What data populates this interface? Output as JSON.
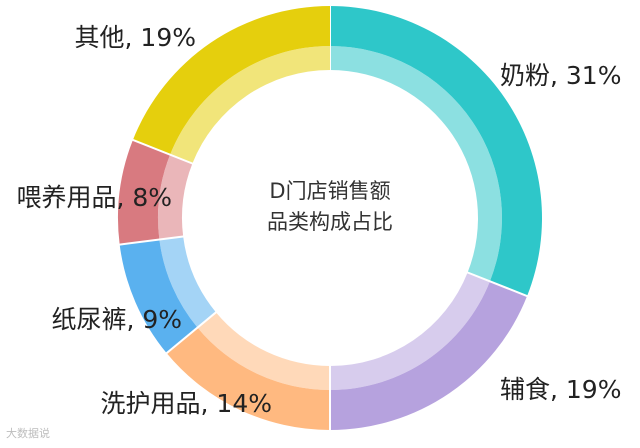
{
  "chart_data": {
    "type": "pie",
    "variant": "donut",
    "title": [
      "D门店销售额",
      "品类构成占比"
    ],
    "slices": [
      {
        "name": "奶粉",
        "value": 31,
        "label": "奶粉, 31%",
        "color": "#2ec7c9"
      },
      {
        "name": "辅食",
        "value": 19,
        "label": "辅食, 19%",
        "color": "#b6a2de"
      },
      {
        "name": "洗护用品",
        "value": 14,
        "label": "洗护用品, 14%",
        "color": "#ffb980"
      },
      {
        "name": "纸尿裤",
        "value": 9,
        "label": "纸尿裤, 9%",
        "color": "#5ab1ef"
      },
      {
        "name": "喂养用品",
        "value": 8,
        "label": "喂养用品, 8%",
        "color": "#d87a80"
      },
      {
        "name": "其他",
        "value": 19,
        "label": "其他, 19%",
        "color": "#e5cf0d"
      }
    ],
    "legend": "none",
    "start": "top",
    "direction": "clockwise"
  },
  "watermark": "大数据说"
}
